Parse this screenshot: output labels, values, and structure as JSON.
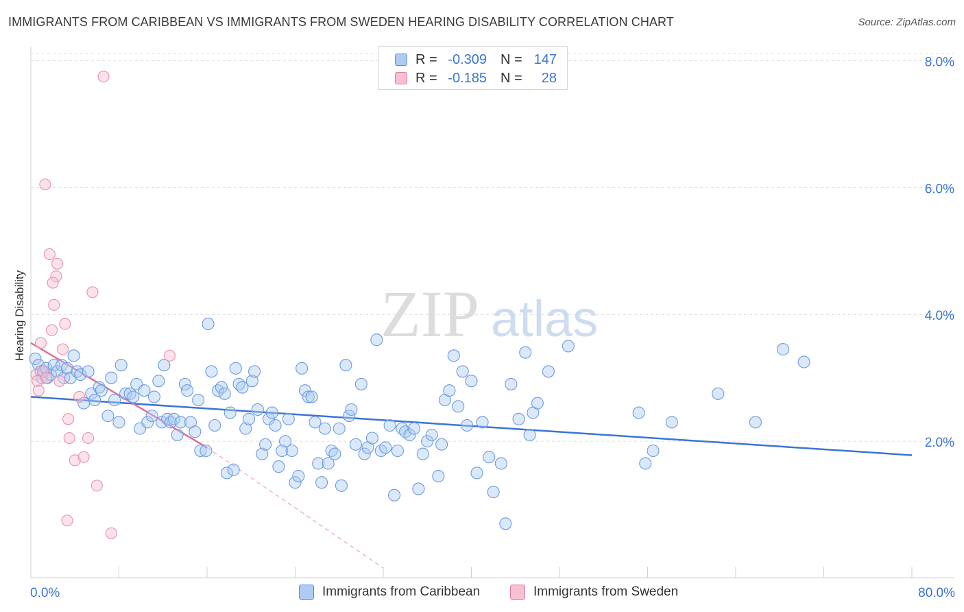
{
  "title": "IMMIGRANTS FROM CARIBBEAN VS IMMIGRANTS FROM SWEDEN HEARING DISABILITY CORRELATION CHART",
  "source": "Source: ZipAtlas.com",
  "watermark": {
    "zip": "ZIP",
    "atlas": "atlas"
  },
  "legend": {
    "rows": [
      {
        "r_label": "R =",
        "r_value": "-0.309",
        "n_label": "N =",
        "n_value": "147",
        "color": "#aecbf2",
        "border": "#5b8fd9"
      },
      {
        "r_label": "R =",
        "r_value": "-0.185",
        "n_label": "N =",
        "n_value": "28",
        "color": "#f8c0d2",
        "border": "#e27aa0"
      }
    ]
  },
  "bottom_legend": [
    {
      "label": "Immigrants from Caribbean",
      "color": "#aecbf2",
      "border": "#5b8fd9"
    },
    {
      "label": "Immigrants from Sweden",
      "color": "#f8c0d2",
      "border": "#e27aa0"
    }
  ],
  "chart_data": {
    "type": "scatter",
    "title": "IMMIGRANTS FROM CARIBBEAN VS IMMIGRANTS FROM SWEDEN HEARING DISABILITY CORRELATION CHART",
    "xlabel": "",
    "ylabel": "Hearing Disability",
    "xlim": [
      0,
      80
    ],
    "ylim": [
      0,
      8.2
    ],
    "x_tick_labels": [
      "0.0%",
      "80.0%"
    ],
    "y_ticks": [
      2,
      4,
      6,
      8
    ],
    "y_tick_labels": [
      "2.0%",
      "4.0%",
      "6.0%",
      "8.0%"
    ],
    "grid": true,
    "colors": {
      "caribbean": "#3b74d6",
      "sweden": "#e0709a",
      "axis_text": "#3b74d6"
    },
    "series": [
      {
        "name": "Immigrants from Caribbean",
        "trend": {
          "x0": 0,
          "y0": 2.7,
          "x1": 80,
          "y1": 1.78
        },
        "points": [
          [
            0.4,
            3.3
          ],
          [
            0.7,
            3.2
          ],
          [
            0.9,
            3.1
          ],
          [
            1.0,
            3.0
          ],
          [
            1.2,
            3.1
          ],
          [
            1.4,
            3.15
          ],
          [
            1.5,
            3.0
          ],
          [
            1.8,
            3.05
          ],
          [
            2.1,
            3.2
          ],
          [
            2.4,
            3.1
          ],
          [
            2.8,
            3.2
          ],
          [
            3.0,
            3.0
          ],
          [
            3.3,
            3.15
          ],
          [
            3.6,
            3.0
          ],
          [
            3.9,
            3.35
          ],
          [
            4.2,
            3.1
          ],
          [
            4.5,
            3.05
          ],
          [
            4.8,
            2.6
          ],
          [
            5.2,
            3.1
          ],
          [
            5.5,
            2.75
          ],
          [
            5.8,
            2.65
          ],
          [
            6.2,
            2.85
          ],
          [
            6.4,
            2.8
          ],
          [
            7.0,
            2.4
          ],
          [
            7.3,
            3.0
          ],
          [
            7.6,
            2.65
          ],
          [
            8.0,
            2.3
          ],
          [
            8.2,
            3.2
          ],
          [
            8.6,
            2.75
          ],
          [
            9.0,
            2.75
          ],
          [
            9.3,
            2.7
          ],
          [
            9.6,
            2.9
          ],
          [
            9.9,
            2.2
          ],
          [
            10.3,
            2.8
          ],
          [
            10.6,
            2.3
          ],
          [
            11.0,
            2.4
          ],
          [
            11.2,
            2.7
          ],
          [
            11.6,
            2.95
          ],
          [
            11.9,
            2.3
          ],
          [
            12.1,
            3.2
          ],
          [
            12.4,
            2.35
          ],
          [
            12.7,
            2.3
          ],
          [
            13.0,
            2.35
          ],
          [
            13.3,
            2.1
          ],
          [
            13.6,
            2.3
          ],
          [
            14.0,
            2.9
          ],
          [
            14.2,
            2.8
          ],
          [
            14.5,
            2.3
          ],
          [
            14.9,
            2.15
          ],
          [
            15.2,
            2.65
          ],
          [
            15.4,
            1.85
          ],
          [
            15.9,
            1.85
          ],
          [
            16.1,
            3.85
          ],
          [
            16.4,
            3.1
          ],
          [
            16.7,
            2.25
          ],
          [
            17.0,
            2.8
          ],
          [
            17.3,
            2.85
          ],
          [
            17.6,
            2.75
          ],
          [
            17.8,
            1.5
          ],
          [
            18.1,
            2.45
          ],
          [
            18.4,
            1.55
          ],
          [
            18.6,
            3.15
          ],
          [
            18.9,
            2.9
          ],
          [
            19.2,
            2.85
          ],
          [
            19.5,
            2.2
          ],
          [
            19.8,
            2.35
          ],
          [
            20.1,
            2.95
          ],
          [
            20.3,
            3.1
          ],
          [
            20.6,
            2.5
          ],
          [
            21.0,
            1.8
          ],
          [
            21.3,
            1.95
          ],
          [
            21.6,
            2.35
          ],
          [
            21.9,
            2.45
          ],
          [
            22.2,
            2.25
          ],
          [
            22.5,
            1.6
          ],
          [
            22.8,
            1.85
          ],
          [
            23.1,
            2.0
          ],
          [
            23.4,
            2.35
          ],
          [
            23.7,
            1.85
          ],
          [
            24.0,
            1.35
          ],
          [
            24.3,
            1.45
          ],
          [
            24.6,
            3.15
          ],
          [
            24.9,
            2.8
          ],
          [
            25.2,
            2.7
          ],
          [
            25.5,
            2.7
          ],
          [
            25.8,
            2.3
          ],
          [
            26.1,
            1.65
          ],
          [
            26.4,
            1.35
          ],
          [
            26.7,
            2.2
          ],
          [
            27.0,
            1.65
          ],
          [
            27.3,
            1.85
          ],
          [
            27.6,
            1.8
          ],
          [
            28.0,
            2.2
          ],
          [
            28.2,
            1.3
          ],
          [
            28.6,
            3.2
          ],
          [
            28.9,
            2.4
          ],
          [
            29.1,
            2.5
          ],
          [
            29.5,
            1.95
          ],
          [
            30.0,
            2.9
          ],
          [
            30.3,
            1.8
          ],
          [
            30.6,
            1.9
          ],
          [
            31.0,
            2.05
          ],
          [
            31.4,
            3.6
          ],
          [
            31.8,
            1.85
          ],
          [
            32.2,
            1.9
          ],
          [
            32.6,
            2.25
          ],
          [
            33.0,
            1.15
          ],
          [
            33.3,
            1.85
          ],
          [
            33.7,
            2.2
          ],
          [
            34.0,
            2.15
          ],
          [
            34.4,
            2.1
          ],
          [
            34.8,
            2.2
          ],
          [
            35.2,
            1.25
          ],
          [
            35.6,
            1.8
          ],
          [
            36.0,
            2.0
          ],
          [
            36.4,
            2.1
          ],
          [
            37.0,
            1.45
          ],
          [
            37.3,
            1.95
          ],
          [
            37.6,
            2.65
          ],
          [
            38.0,
            2.8
          ],
          [
            38.4,
            3.35
          ],
          [
            38.8,
            2.55
          ],
          [
            39.2,
            3.1
          ],
          [
            39.6,
            2.25
          ],
          [
            40.0,
            2.95
          ],
          [
            40.5,
            1.5
          ],
          [
            41.0,
            2.3
          ],
          [
            41.6,
            1.75
          ],
          [
            42.0,
            1.2
          ],
          [
            42.7,
            1.65
          ],
          [
            43.1,
            0.7
          ],
          [
            43.6,
            2.9
          ],
          [
            44.3,
            2.35
          ],
          [
            44.9,
            3.4
          ],
          [
            45.3,
            2.1
          ],
          [
            45.6,
            2.45
          ],
          [
            46.0,
            2.6
          ],
          [
            47.0,
            3.1
          ],
          [
            48.8,
            3.5
          ],
          [
            55.2,
            2.45
          ],
          [
            55.8,
            1.65
          ],
          [
            56.5,
            1.85
          ],
          [
            58.2,
            2.3
          ],
          [
            62.4,
            2.75
          ],
          [
            65.8,
            2.3
          ],
          [
            68.3,
            3.45
          ],
          [
            70.2,
            3.25
          ]
        ]
      },
      {
        "name": "Immigrants from Sweden",
        "trend": {
          "x0": 0,
          "y0": 3.55,
          "x1": 16.0,
          "y1": 1.9
        },
        "trend_extension": {
          "x0": 16.0,
          "y0": 1.9,
          "x1": 32.0,
          "y1": 0.0
        },
        "points": [
          [
            0.5,
            3.05
          ],
          [
            0.6,
            2.95
          ],
          [
            0.7,
            2.8
          ],
          [
            0.9,
            3.55
          ],
          [
            1.1,
            3.1
          ],
          [
            1.3,
            6.05
          ],
          [
            1.4,
            3.0
          ],
          [
            1.7,
            4.95
          ],
          [
            1.9,
            3.75
          ],
          [
            2.1,
            4.15
          ],
          [
            2.3,
            4.6
          ],
          [
            2.4,
            4.8
          ],
          [
            2.6,
            2.95
          ],
          [
            2.9,
            3.45
          ],
          [
            3.1,
            3.85
          ],
          [
            3.4,
            2.35
          ],
          [
            3.5,
            2.05
          ],
          [
            4.0,
            1.7
          ],
          [
            4.4,
            2.7
          ],
          [
            4.8,
            1.75
          ],
          [
            5.2,
            2.05
          ],
          [
            5.6,
            4.35
          ],
          [
            6.0,
            1.3
          ],
          [
            2.0,
            4.5
          ],
          [
            6.6,
            7.75
          ],
          [
            3.3,
            0.75
          ],
          [
            7.3,
            0.55
          ],
          [
            12.6,
            3.35
          ]
        ]
      }
    ]
  }
}
